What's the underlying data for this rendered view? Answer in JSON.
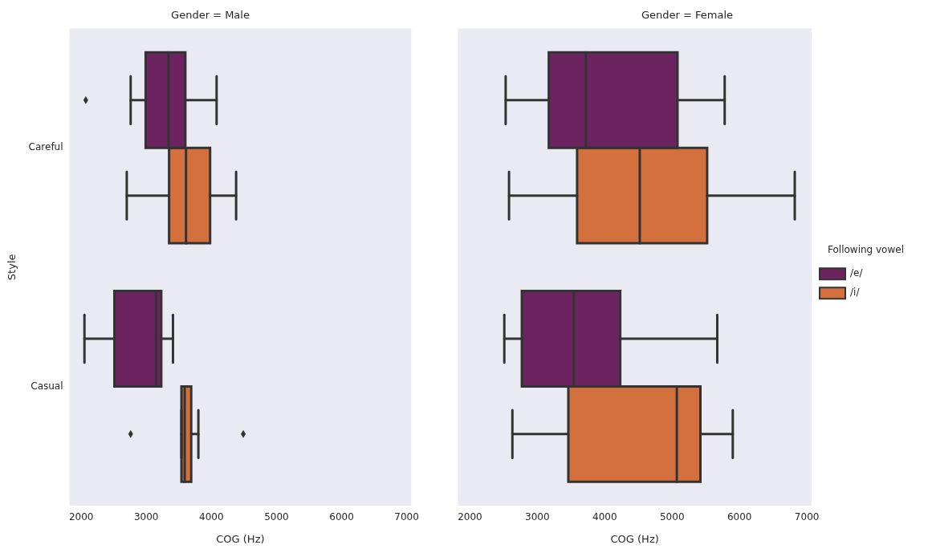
{
  "chart_data": [
    {
      "type": "box",
      "title": "Gender = Male",
      "xlabel": "COG (Hz)",
      "ylabel": "Style",
      "orientation": "horizontal",
      "categories": [
        "Careful",
        "Casual"
      ],
      "xlim": [
        1820,
        7070
      ],
      "xticks": [
        2000,
        3000,
        4000,
        5000,
        6000,
        7000
      ],
      "series": [
        {
          "color": "#6b2460",
          "boxes": [
            {
              "low": 2760,
              "q1": 2990,
              "median": 3340,
              "q3": 3600,
              "high": 4080,
              "outliers": [
                2070
              ]
            },
            {
              "low": 2050,
              "q1": 2510,
              "median": 3150,
              "q3": 3230,
              "high": 3410
            }
          ]
        },
        {
          "color": "#d4703e",
          "boxes": [
            {
              "low": 2700,
              "q1": 3350,
              "median": 3610,
              "q3": 3980,
              "high": 4380
            },
            {
              "low": 3540,
              "q1": 3540,
              "median": 3590,
              "q3": 3690,
              "high": 3800,
              "outliers": [
                2760,
                4490
              ]
            }
          ]
        }
      ]
    },
    {
      "type": "box",
      "title": "Gender = Female",
      "xlabel": "COG (Hz)",
      "orientation": "horizontal",
      "categories": [
        null,
        null
      ],
      "xlim": [
        1820,
        7070
      ],
      "xticks": [
        2000,
        3000,
        4000,
        5000,
        6000,
        7000
      ],
      "tick_labels": "x",
      "legend": "right",
      "legend_title": "Following vowel",
      "series": [
        {
          "name": "/e/",
          "color": "#6b2460",
          "boxes": [
            {
              "low": 2530,
              "q1": 3170,
              "median": 3720,
              "q3": 5080,
              "high": 5780
            },
            {
              "low": 2510,
              "q1": 2770,
              "median": 3540,
              "q3": 4230,
              "high": 5670
            }
          ]
        },
        {
          "name": "/i/",
          "color": "#d4703e",
          "boxes": [
            {
              "low": 2580,
              "q1": 3590,
              "median": 4520,
              "q3": 5520,
              "high": 6820
            },
            {
              "low": 2630,
              "q1": 3460,
              "median": 5070,
              "q3": 5420,
              "high": 5900
            }
          ]
        }
      ]
    }
  ]
}
